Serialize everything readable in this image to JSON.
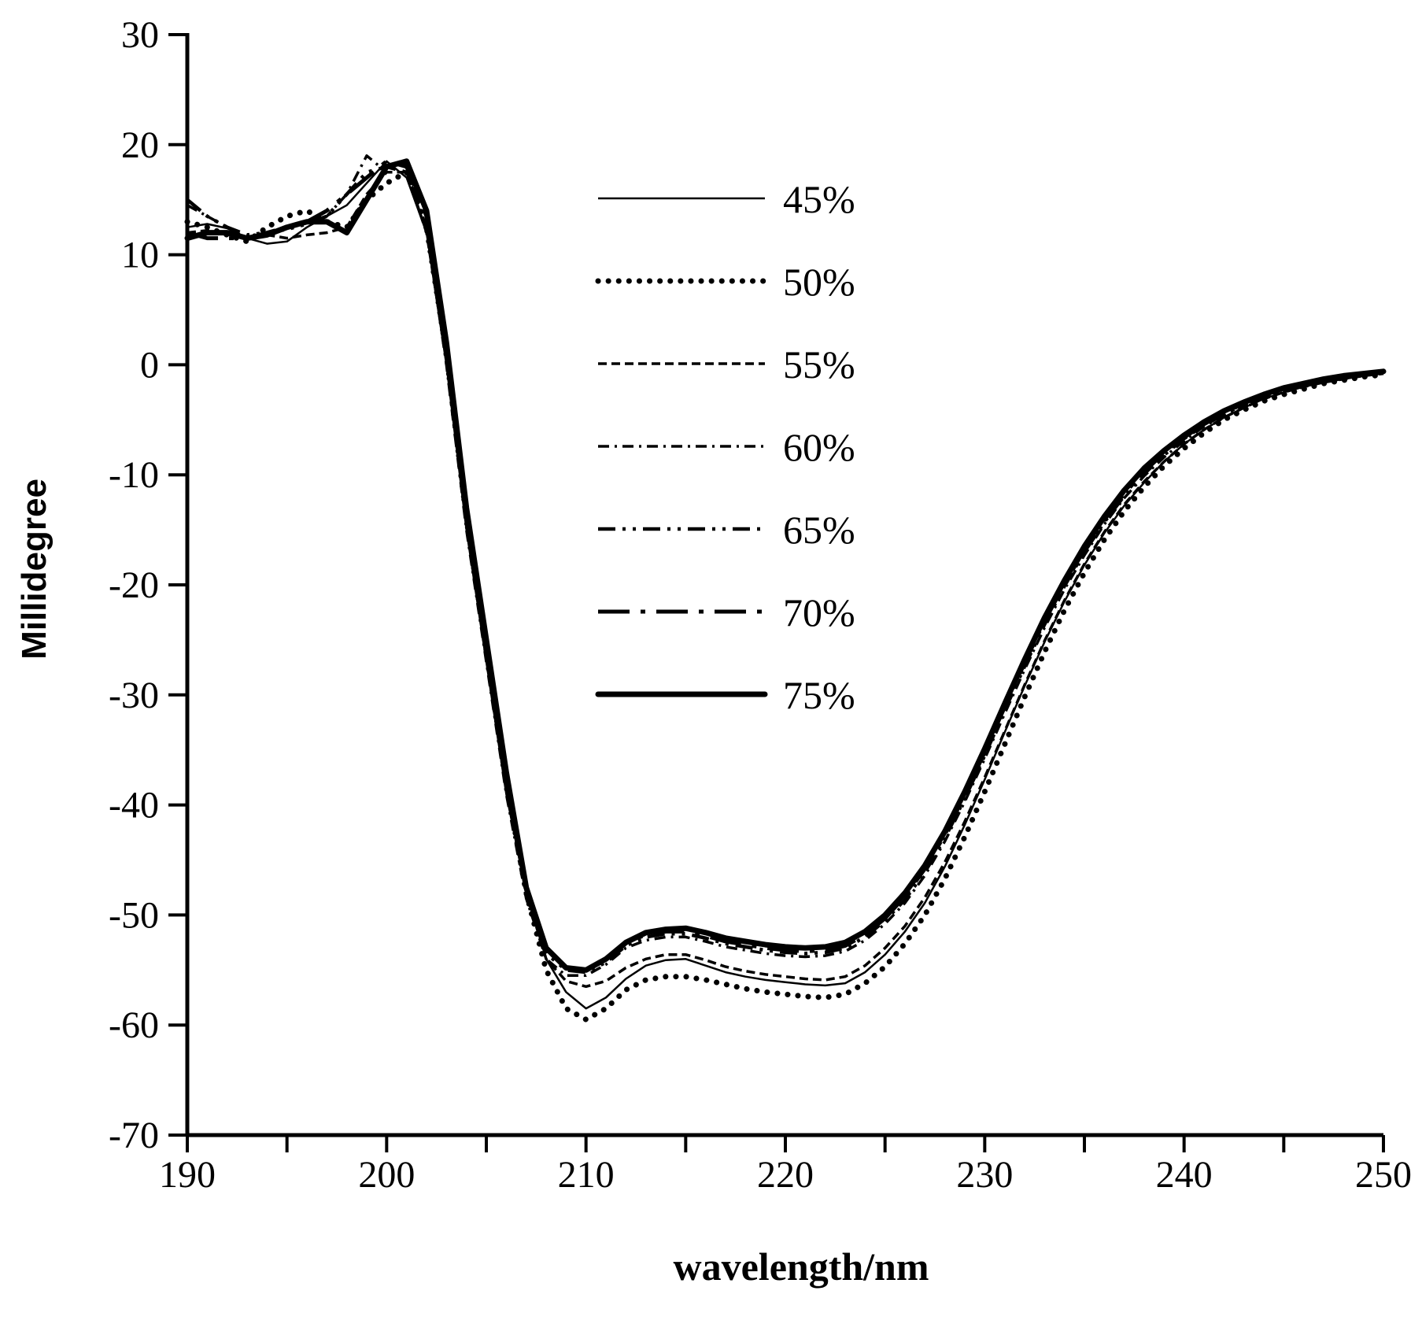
{
  "chart_data": {
    "type": "line",
    "title": "",
    "xlabel": "wavelength/nm",
    "ylabel": "Millidegree",
    "xlim": [
      190,
      250
    ],
    "ylim": [
      -70,
      30
    ],
    "xticks": [
      190,
      200,
      210,
      220,
      230,
      240,
      250
    ],
    "xtick_labels": [
      "190",
      "200",
      "210",
      "220",
      "230",
      "240",
      "250"
    ],
    "yticks": [
      30,
      20,
      10,
      0,
      -10,
      -20,
      -30,
      -40,
      -50,
      -60,
      -70
    ],
    "ytick_labels": [
      "30",
      "20",
      "10",
      "0",
      "-10",
      "-20",
      "-30",
      "-40",
      "-50",
      "-60",
      "-70"
    ],
    "legend_position": "top-right",
    "series": [
      {
        "name": "45%",
        "style": "thin-solid",
        "x": [
          190,
          191,
          192,
          193,
          194,
          195,
          196,
          197,
          198,
          199,
          200,
          201,
          202,
          203,
          204,
          205,
          206,
          207,
          208,
          209,
          210,
          211,
          212,
          213,
          214,
          215,
          216,
          217,
          218,
          219,
          220,
          221,
          222,
          223,
          224,
          225,
          226,
          227,
          228,
          229,
          230,
          231,
          232,
          233,
          234,
          235,
          236,
          237,
          238,
          239,
          240,
          241,
          242,
          243,
          244,
          245,
          246,
          247,
          248,
          249,
          250
        ],
        "values": [
          12.5,
          12.8,
          12.4,
          11.5,
          11.0,
          11.2,
          12.5,
          13.5,
          14.5,
          16.5,
          18.5,
          17.0,
          12.0,
          0,
          -15,
          -27,
          -39,
          -48,
          -54,
          -57,
          -58.5,
          -57.5,
          -55.8,
          -54.6,
          -54.1,
          -54.0,
          -54.6,
          -55.2,
          -55.6,
          -55.9,
          -56.1,
          -56.3,
          -56.4,
          -56.2,
          -55.2,
          -53.6,
          -51.5,
          -48.9,
          -45.6,
          -41.8,
          -37.7,
          -33.4,
          -29.2,
          -25.2,
          -21.5,
          -18.2,
          -15.3,
          -12.8,
          -10.7,
          -8.8,
          -7.2,
          -5.9,
          -4.8,
          -3.9,
          -3.1,
          -2.5,
          -2.0,
          -1.6,
          -1.3,
          -1.0,
          -0.8
        ]
      },
      {
        "name": "50%",
        "style": "dotted",
        "x": [
          190,
          191,
          192,
          193,
          194,
          195,
          196,
          197,
          198,
          199,
          200,
          201,
          202,
          203,
          204,
          205,
          206,
          207,
          208,
          209,
          210,
          211,
          212,
          213,
          214,
          215,
          216,
          217,
          218,
          219,
          220,
          221,
          222,
          223,
          224,
          225,
          226,
          227,
          228,
          229,
          230,
          231,
          232,
          233,
          234,
          235,
          236,
          237,
          238,
          239,
          240,
          241,
          242,
          243,
          244,
          245,
          246,
          247,
          248,
          249,
          250
        ],
        "values": [
          13.0,
          12.5,
          11.8,
          11.2,
          12.5,
          13.5,
          14.0,
          13.0,
          12.5,
          15.0,
          16.5,
          17.5,
          12.5,
          1.0,
          -14,
          -26,
          -38,
          -48,
          -55,
          -58.5,
          -59.5,
          -58.5,
          -56.8,
          -55.9,
          -55.6,
          -55.6,
          -55.9,
          -56.3,
          -56.7,
          -57.0,
          -57.2,
          -57.4,
          -57.5,
          -57.2,
          -56.2,
          -54.7,
          -52.6,
          -50.0,
          -46.7,
          -42.9,
          -38.8,
          -34.5,
          -30.2,
          -26.1,
          -22.3,
          -18.9,
          -15.9,
          -13.3,
          -11.1,
          -9.2,
          -7.6,
          -6.2,
          -5.0,
          -4.1,
          -3.3,
          -2.7,
          -2.2,
          -1.7,
          -1.4,
          -1.1,
          -0.9
        ]
      },
      {
        "name": "55%",
        "style": "dashed",
        "x": [
          190,
          191,
          192,
          193,
          194,
          195,
          196,
          197,
          198,
          199,
          200,
          201,
          202,
          203,
          204,
          205,
          206,
          207,
          208,
          209,
          210,
          211,
          212,
          213,
          214,
          215,
          216,
          217,
          218,
          219,
          220,
          221,
          222,
          223,
          224,
          225,
          226,
          227,
          228,
          229,
          230,
          231,
          232,
          233,
          234,
          235,
          236,
          237,
          238,
          239,
          240,
          241,
          242,
          243,
          244,
          245,
          246,
          247,
          248,
          249,
          250
        ],
        "values": [
          12.0,
          12.2,
          12.0,
          11.5,
          11.8,
          11.5,
          11.8,
          12.0,
          12.5,
          15.5,
          17.5,
          17.5,
          12.0,
          0.5,
          -14.5,
          -26.5,
          -38.5,
          -48,
          -54,
          -56,
          -56.5,
          -56.0,
          -54.8,
          -54.0,
          -53.6,
          -53.6,
          -54.1,
          -54.7,
          -55.1,
          -55.4,
          -55.6,
          -55.8,
          -55.9,
          -55.6,
          -54.6,
          -53.0,
          -51.0,
          -48.4,
          -45.2,
          -41.5,
          -37.5,
          -33.3,
          -29.1,
          -25.1,
          -21.4,
          -18.1,
          -15.2,
          -12.7,
          -10.6,
          -8.8,
          -7.2,
          -5.9,
          -4.8,
          -3.9,
          -3.1,
          -2.5,
          -2.0,
          -1.6,
          -1.3,
          -1.0,
          -0.8
        ]
      },
      {
        "name": "60%",
        "style": "dash-dot",
        "x": [
          190,
          191,
          192,
          193,
          194,
          195,
          196,
          197,
          198,
          199,
          200,
          201,
          202,
          203,
          204,
          205,
          206,
          207,
          208,
          209,
          210,
          211,
          212,
          213,
          214,
          215,
          216,
          217,
          218,
          219,
          220,
          221,
          222,
          223,
          224,
          225,
          226,
          227,
          228,
          229,
          230,
          231,
          232,
          233,
          234,
          235,
          236,
          237,
          238,
          239,
          240,
          241,
          242,
          243,
          244,
          245,
          246,
          247,
          248,
          249,
          250
        ],
        "values": [
          14.5,
          13.5,
          12.5,
          11.5,
          12.0,
          12.5,
          13.0,
          13.5,
          15.5,
          19.0,
          17.5,
          17.5,
          12.5,
          0,
          -15,
          -27,
          -39,
          -48.5,
          -54,
          -55.5,
          -55.5,
          -54.5,
          -53.0,
          -52.3,
          -52.0,
          -52.0,
          -52.4,
          -52.9,
          -53.2,
          -53.5,
          -53.7,
          -53.8,
          -53.7,
          -53.3,
          -52.3,
          -50.8,
          -48.9,
          -46.4,
          -43.3,
          -39.7,
          -35.8,
          -31.7,
          -27.7,
          -23.9,
          -20.4,
          -17.3,
          -14.5,
          -12.1,
          -10.1,
          -8.4,
          -6.9,
          -5.6,
          -4.6,
          -3.7,
          -3.0,
          -2.4,
          -1.9,
          -1.5,
          -1.2,
          -1.0,
          -0.8
        ]
      },
      {
        "name": "65%",
        "style": "dash-dot-dot",
        "x": [
          190,
          191,
          192,
          193,
          194,
          195,
          196,
          197,
          198,
          199,
          200,
          201,
          202,
          203,
          204,
          205,
          206,
          207,
          208,
          209,
          210,
          211,
          212,
          213,
          214,
          215,
          216,
          217,
          218,
          219,
          220,
          221,
          222,
          223,
          224,
          225,
          226,
          227,
          228,
          229,
          230,
          231,
          232,
          233,
          234,
          235,
          236,
          237,
          238,
          239,
          240,
          241,
          242,
          243,
          244,
          245,
          246,
          247,
          248,
          249,
          250
        ],
        "values": [
          15.0,
          13.5,
          12.5,
          11.8,
          12.0,
          12.3,
          12.8,
          13.5,
          15.5,
          17.5,
          18.0,
          17.5,
          13.0,
          1.0,
          -14,
          -26,
          -38,
          -48,
          -53.5,
          -55,
          -55.2,
          -54.3,
          -52.8,
          -52.0,
          -51.7,
          -51.7,
          -52.1,
          -52.6,
          -52.9,
          -53.2,
          -53.4,
          -53.5,
          -53.4,
          -53.0,
          -52.0,
          -50.5,
          -48.6,
          -46.1,
          -43.0,
          -39.4,
          -35.5,
          -31.4,
          -27.4,
          -23.6,
          -20.1,
          -17.0,
          -14.3,
          -11.9,
          -9.9,
          -8.2,
          -6.7,
          -5.5,
          -4.5,
          -3.6,
          -2.9,
          -2.3,
          -1.8,
          -1.4,
          -1.1,
          -0.9,
          -0.7
        ]
      },
      {
        "name": "70%",
        "style": "long-dash-dot",
        "x": [
          190,
          191,
          192,
          193,
          194,
          195,
          196,
          197,
          198,
          199,
          200,
          201,
          202,
          203,
          204,
          205,
          206,
          207,
          208,
          209,
          210,
          211,
          212,
          213,
          214,
          215,
          216,
          217,
          218,
          219,
          220,
          221,
          222,
          223,
          224,
          225,
          226,
          227,
          228,
          229,
          230,
          231,
          232,
          233,
          234,
          235,
          236,
          237,
          238,
          239,
          240,
          241,
          242,
          243,
          244,
          245,
          246,
          247,
          248,
          249,
          250
        ],
        "values": [
          12.0,
          11.5,
          11.5,
          11.5,
          12.0,
          12.5,
          13.0,
          14.0,
          15.5,
          17.0,
          18.5,
          18.0,
          13.5,
          1.5,
          -13.5,
          -25.5,
          -37.5,
          -47.5,
          -53,
          -54.8,
          -55.0,
          -54.0,
          -52.5,
          -51.8,
          -51.5,
          -51.5,
          -51.9,
          -52.4,
          -52.7,
          -53.0,
          -53.2,
          -53.3,
          -53.2,
          -52.8,
          -51.8,
          -50.3,
          -48.3,
          -45.8,
          -42.7,
          -39.1,
          -35.2,
          -31.1,
          -27.1,
          -23.3,
          -19.9,
          -16.8,
          -14.1,
          -11.7,
          -9.7,
          -8.0,
          -6.6,
          -5.4,
          -4.4,
          -3.5,
          -2.8,
          -2.2,
          -1.8,
          -1.4,
          -1.1,
          -0.9,
          -0.7
        ]
      },
      {
        "name": "75%",
        "style": "thick-solid",
        "x": [
          190,
          191,
          192,
          193,
          194,
          195,
          196,
          197,
          198,
          199,
          200,
          201,
          202,
          203,
          204,
          205,
          206,
          207,
          208,
          209,
          210,
          211,
          212,
          213,
          214,
          215,
          216,
          217,
          218,
          219,
          220,
          221,
          222,
          223,
          224,
          225,
          226,
          227,
          228,
          229,
          230,
          231,
          232,
          233,
          234,
          235,
          236,
          237,
          238,
          239,
          240,
          241,
          242,
          243,
          244,
          245,
          246,
          247,
          248,
          249,
          250
        ],
        "values": [
          11.5,
          12.0,
          12.0,
          11.5,
          11.8,
          12.5,
          13.0,
          13.0,
          12.0,
          15.0,
          18.0,
          18.5,
          14.0,
          2.0,
          -13,
          -25,
          -37,
          -47.5,
          -53,
          -54.8,
          -55.0,
          -54.0,
          -52.5,
          -51.6,
          -51.3,
          -51.2,
          -51.6,
          -52.1,
          -52.4,
          -52.7,
          -52.9,
          -53.0,
          -52.9,
          -52.5,
          -51.5,
          -50.0,
          -48.0,
          -45.5,
          -42.4,
          -38.8,
          -34.9,
          -30.8,
          -26.8,
          -23.0,
          -19.6,
          -16.5,
          -13.8,
          -11.4,
          -9.4,
          -7.8,
          -6.4,
          -5.2,
          -4.2,
          -3.4,
          -2.7,
          -2.1,
          -1.7,
          -1.3,
          -1.0,
          -0.8,
          -0.6
        ]
      }
    ]
  }
}
